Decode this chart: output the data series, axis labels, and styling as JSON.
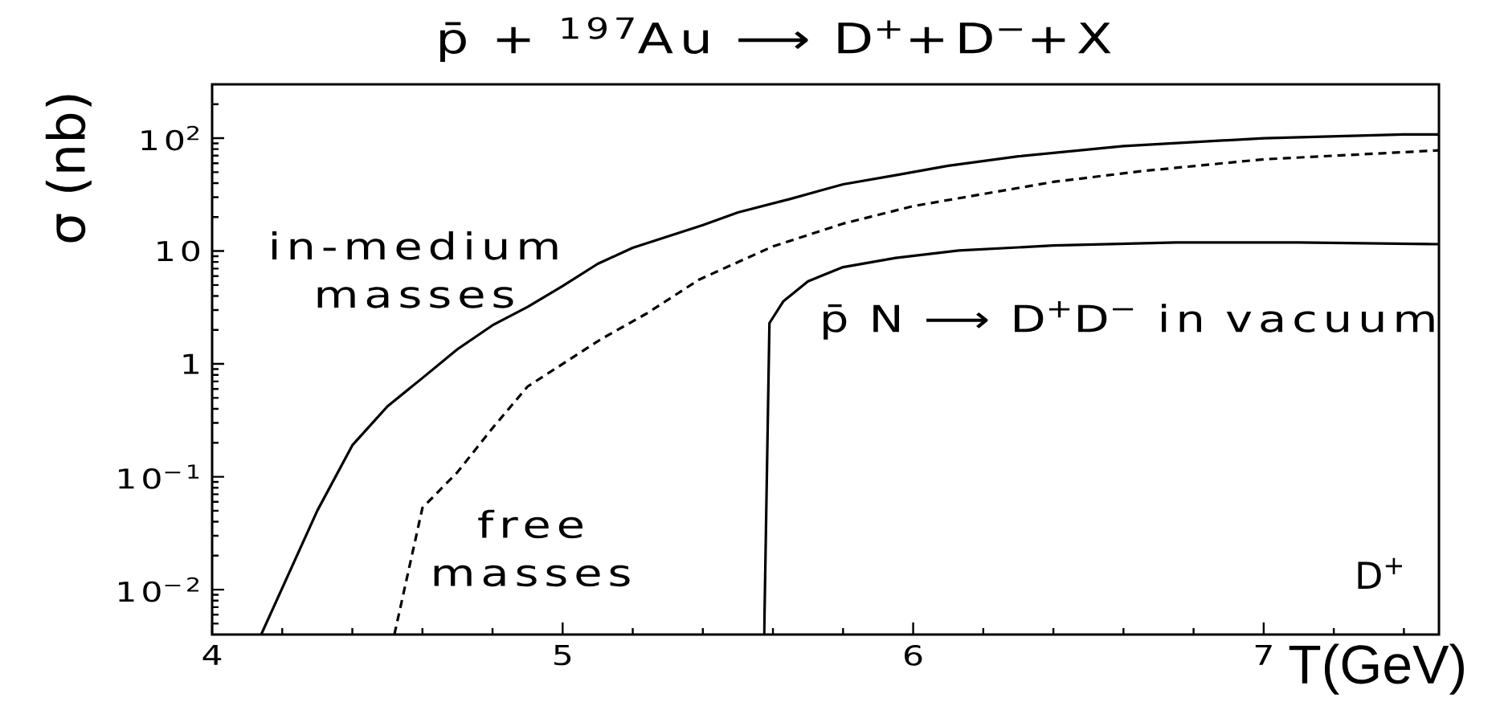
{
  "chart_data": {
    "type": "line",
    "title": "p̄ + $^{197}$Au ⟶ D$^{+}$+D$^{−}$+X",
    "xlabel": "T(GeV)",
    "ylabel": "σ (nb)",
    "log": "y",
    "xlim": [
      4,
      7.5
    ],
    "ylim": [
      0.004,
      300
    ],
    "xticks": [
      4,
      {
        "value": 4.2,
        "label": null
      },
      {
        "value": 4.4,
        "label": null
      },
      {
        "value": 4.6,
        "label": null
      },
      {
        "value": 4.8,
        "label": null
      },
      5,
      {
        "value": 5.2,
        "label": null
      },
      {
        "value": 5.4,
        "label": null
      },
      {
        "value": 5.6,
        "label": null
      },
      {
        "value": 5.8,
        "label": null
      },
      6,
      {
        "value": 6.2,
        "label": null
      },
      {
        "value": 6.4,
        "label": null
      },
      {
        "value": 6.6,
        "label": null
      },
      {
        "value": 6.8,
        "label": null
      },
      7,
      {
        "value": 7.2,
        "label": null
      },
      {
        "value": 7.4,
        "label": null
      }
    ],
    "yticks": [
      {
        "value": 0.005,
        "label": null
      },
      {
        "value": 0.006,
        "label": null
      },
      {
        "value": 0.007,
        "label": null
      },
      {
        "value": 0.008,
        "label": null
      },
      {
        "value": 0.009,
        "label": null
      },
      {
        "value": 0.01,
        "label": "10$^{−2}$"
      },
      {
        "value": 0.02,
        "label": null
      },
      {
        "value": 0.03,
        "label": null
      },
      {
        "value": 0.04,
        "label": null
      },
      {
        "value": 0.05,
        "label": null
      },
      {
        "value": 0.06,
        "label": null
      },
      {
        "value": 0.07,
        "label": null
      },
      {
        "value": 0.08,
        "label": null
      },
      {
        "value": 0.09,
        "label": null
      },
      {
        "value": 0.1,
        "label": "10$^{−1}$"
      },
      {
        "value": 0.2,
        "label": null
      },
      {
        "value": 0.3,
        "label": null
      },
      {
        "value": 0.4,
        "label": null
      },
      {
        "value": 0.5,
        "label": null
      },
      {
        "value": 0.6,
        "label": null
      },
      {
        "value": 0.7,
        "label": null
      },
      {
        "value": 0.8,
        "label": null
      },
      {
        "value": 0.9,
        "label": null
      },
      1,
      {
        "value": 2,
        "label": null
      },
      {
        "value": 3,
        "label": null
      },
      {
        "value": 4,
        "label": null
      },
      {
        "value": 5,
        "label": null
      },
      {
        "value": 6,
        "label": null
      },
      {
        "value": 7,
        "label": null
      },
      {
        "value": 8,
        "label": null
      },
      {
        "value": 9,
        "label": null
      },
      10,
      {
        "value": 20,
        "label": null
      },
      {
        "value": 30,
        "label": null
      },
      {
        "value": 40,
        "label": null
      },
      {
        "value": 50,
        "label": null
      },
      {
        "value": 60,
        "label": null
      },
      {
        "value": 70,
        "label": null
      },
      {
        "value": 80,
        "label": null
      },
      {
        "value": 90,
        "label": null
      },
      {
        "value": 100,
        "label": "10$^{2}$"
      },
      {
        "value": 200,
        "label": null
      }
    ],
    "annotations": [
      "D$^{+}$"
    ],
    "series": [
      {
        "name": "in-medium masses",
        "color": "#000000",
        "line_style": "solid",
        "x": [
          4.14,
          4.3,
          4.4,
          4.5,
          4.6,
          4.7,
          4.8,
          4.9,
          5.0,
          5.1,
          5.2,
          5.4,
          5.5,
          5.65,
          5.8,
          5.95,
          6.1,
          6.3,
          6.6,
          7.0,
          7.4,
          7.5
        ],
        "values": [
          0.004,
          0.05,
          0.19,
          0.42,
          0.75,
          1.35,
          2.2,
          3.2,
          4.9,
          7.7,
          10.7,
          17,
          22,
          29,
          39,
          47,
          57,
          69,
          85,
          100,
          108,
          108
        ]
      },
      {
        "name": "free masses",
        "color": "#000000",
        "line_style": "dashed",
        "x": [
          4.52,
          4.6,
          4.7,
          4.8,
          4.9,
          5.0,
          5.11,
          5.24,
          5.39,
          5.6,
          5.8,
          6.0,
          6.4,
          6.65,
          7.0,
          7.5
        ],
        "values": [
          0.004,
          0.053,
          0.11,
          0.27,
          0.63,
          1.0,
          1.66,
          2.8,
          5.6,
          11,
          17.5,
          25,
          41,
          51,
          65,
          78
        ]
      },
      {
        "name": "p̄ N ⟶ D$^{+}$D$^{−}$ in vacuum",
        "color": "#000000",
        "line_style": "solid",
        "x": [
          5.575,
          5.59,
          5.63,
          5.7,
          5.8,
          5.95,
          6.13,
          6.4,
          6.75,
          7.1,
          7.5
        ],
        "values": [
          0.004,
          2.3,
          3.6,
          5.4,
          7.2,
          8.7,
          10.1,
          11.2,
          11.9,
          11.9,
          11.5
        ]
      }
    ]
  }
}
